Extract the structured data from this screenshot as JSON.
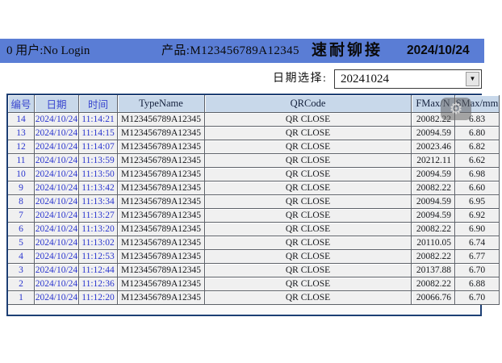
{
  "header_bar": {
    "user_label": "0 用户:No Login",
    "product_label": "产品:M123456789A12345",
    "app_title": "速耐铆接",
    "date": "2024/10/24"
  },
  "date_picker": {
    "label": "日期选择:",
    "selected_value": "20241024",
    "dropdown_icon": "chevron-down-icon",
    "dropdown_glyph": "▼"
  },
  "settings_overlay": {
    "icon": "gear-icon",
    "glyph": "⚙"
  },
  "table": {
    "columns": [
      {
        "key": "id",
        "label": "编号"
      },
      {
        "key": "date",
        "label": "日期"
      },
      {
        "key": "time",
        "label": "时间"
      },
      {
        "key": "type",
        "label": "TypeName"
      },
      {
        "key": "qr",
        "label": "QRCode"
      },
      {
        "key": "fmax",
        "label": "FMax/N"
      },
      {
        "key": "smax",
        "label": "SMax/mm"
      }
    ],
    "rows": [
      {
        "id": "14",
        "date": "2024/10/24",
        "time": "11:14:21",
        "type": "M123456789A12345",
        "qr": "QR CLOSE",
        "fmax": "20082.22",
        "smax": "6.83"
      },
      {
        "id": "13",
        "date": "2024/10/24",
        "time": "11:14:15",
        "type": "M123456789A12345",
        "qr": "QR CLOSE",
        "fmax": "20094.59",
        "smax": "6.80"
      },
      {
        "id": "12",
        "date": "2024/10/24",
        "time": "11:14:07",
        "type": "M123456789A12345",
        "qr": "QR CLOSE",
        "fmax": "20023.46",
        "smax": "6.82"
      },
      {
        "id": "11",
        "date": "2024/10/24",
        "time": "11:13:59",
        "type": "M123456789A12345",
        "qr": "QR CLOSE",
        "fmax": "20212.11",
        "smax": "6.62"
      },
      {
        "id": "10",
        "date": "2024/10/24",
        "time": "11:13:50",
        "type": "M123456789A12345",
        "qr": "QR CLOSE",
        "fmax": "20094.59",
        "smax": "6.98"
      },
      {
        "id": "9",
        "date": "2024/10/24",
        "time": "11:13:42",
        "type": "M123456789A12345",
        "qr": "QR CLOSE",
        "fmax": "20082.22",
        "smax": "6.60"
      },
      {
        "id": "8",
        "date": "2024/10/24",
        "time": "11:13:34",
        "type": "M123456789A12345",
        "qr": "QR CLOSE",
        "fmax": "20094.59",
        "smax": "6.95"
      },
      {
        "id": "7",
        "date": "2024/10/24",
        "time": "11:13:27",
        "type": "M123456789A12345",
        "qr": "QR CLOSE",
        "fmax": "20094.59",
        "smax": "6.92"
      },
      {
        "id": "6",
        "date": "2024/10/24",
        "time": "11:13:20",
        "type": "M123456789A12345",
        "qr": "QR CLOSE",
        "fmax": "20082.22",
        "smax": "6.90"
      },
      {
        "id": "5",
        "date": "2024/10/24",
        "time": "11:13:02",
        "type": "M123456789A12345",
        "qr": "QR CLOSE",
        "fmax": "20110.05",
        "smax": "6.74"
      },
      {
        "id": "4",
        "date": "2024/10/24",
        "time": "11:12:53",
        "type": "M123456789A12345",
        "qr": "QR CLOSE",
        "fmax": "20082.22",
        "smax": "6.77"
      },
      {
        "id": "3",
        "date": "2024/10/24",
        "time": "11:12:44",
        "type": "M123456789A12345",
        "qr": "QR CLOSE",
        "fmax": "20137.88",
        "smax": "6.70"
      },
      {
        "id": "2",
        "date": "2024/10/24",
        "time": "11:12:36",
        "type": "M123456789A12345",
        "qr": "QR CLOSE",
        "fmax": "20082.22",
        "smax": "6.88"
      },
      {
        "id": "1",
        "date": "2024/10/24",
        "time": "11:12:20",
        "type": "M123456789A12345",
        "qr": "QR CLOSE",
        "fmax": "20066.76",
        "smax": "6.70"
      }
    ]
  },
  "colors": {
    "title_bar": "#5a7dd5",
    "grid_border": "#1d3f74",
    "grid_header_bg": "#c8d8ea",
    "row_bg": "#f0f0f0",
    "blue_text": "#2a35cf"
  }
}
